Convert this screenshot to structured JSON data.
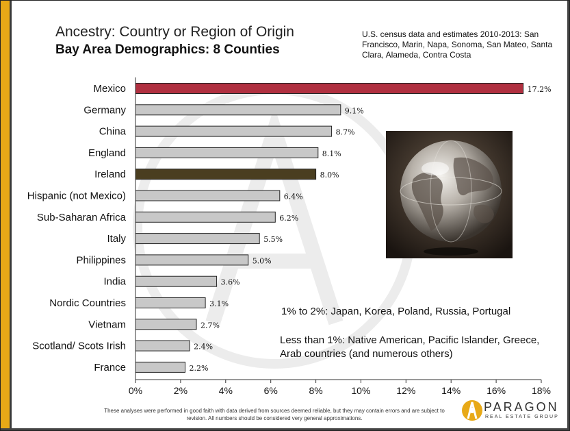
{
  "header": {
    "title": "Ancestry: Country or Region of Origin",
    "subtitle": "Bay Area Demographics: 8 Counties",
    "note": "U.S. census data and estimates 2010-2013: San Francisco, Marin, Napa, Sonoma, San Mateo, Santa Clara, Alameda, Contra Costa"
  },
  "annotations": {
    "range_1_2": "1% to 2%: Japan, Korea, Poland, Russia, Portugal",
    "less_than_1": "Less than 1%: Native American, Pacific Islander, Greece, Arab countries (and numerous others)"
  },
  "footer": {
    "disclaimer": "These analyses were performed in good faith with data derived from sources deemed reliable, but they may contain errors and are subject to revision.  All numbers should be considered very general approximations."
  },
  "logo": {
    "name": "PARAGON",
    "tagline": "REAL ESTATE GROUP"
  },
  "colors": {
    "accent_band": "#e8a917",
    "highlight_bar": "#b03040",
    "ireland_bar": "#4a3e20",
    "default_bar": "#c8c8c8"
  },
  "chart_data": {
    "type": "bar",
    "orientation": "horizontal",
    "categories": [
      "Mexico",
      "Germany",
      "China",
      "England",
      "Ireland",
      "Hispanic (not Mexico)",
      "Sub-Saharan Africa",
      "Italy",
      "Philippines",
      "India",
      "Nordic Countries",
      "Vietnam",
      "Scotland/ Scots Irish",
      "France"
    ],
    "values": [
      17.2,
      9.1,
      8.7,
      8.1,
      8.0,
      6.4,
      6.2,
      5.5,
      5.0,
      3.6,
      3.1,
      2.7,
      2.4,
      2.2
    ],
    "value_labels": [
      "17.2%",
      "9.1%",
      "8.7%",
      "8.1%",
      "8.0%",
      "6.4%",
      "6.2%",
      "5.5%",
      "5.0%",
      "3.6%",
      "3.1%",
      "2.7%",
      "2.4%",
      "2.2%"
    ],
    "bar_colors": [
      "#b03040",
      "#c8c8c8",
      "#c8c8c8",
      "#c8c8c8",
      "#4a3e20",
      "#c8c8c8",
      "#c8c8c8",
      "#c8c8c8",
      "#c8c8c8",
      "#c8c8c8",
      "#c8c8c8",
      "#c8c8c8",
      "#c8c8c8",
      "#c8c8c8"
    ],
    "xlim": [
      0,
      18
    ],
    "xticks": [
      0,
      2,
      4,
      6,
      8,
      10,
      12,
      14,
      16,
      18
    ],
    "xtick_labels": [
      "0%",
      "2%",
      "4%",
      "6%",
      "8%",
      "10%",
      "12%",
      "14%",
      "16%",
      "18%"
    ],
    "grid": false,
    "legend": "none"
  }
}
